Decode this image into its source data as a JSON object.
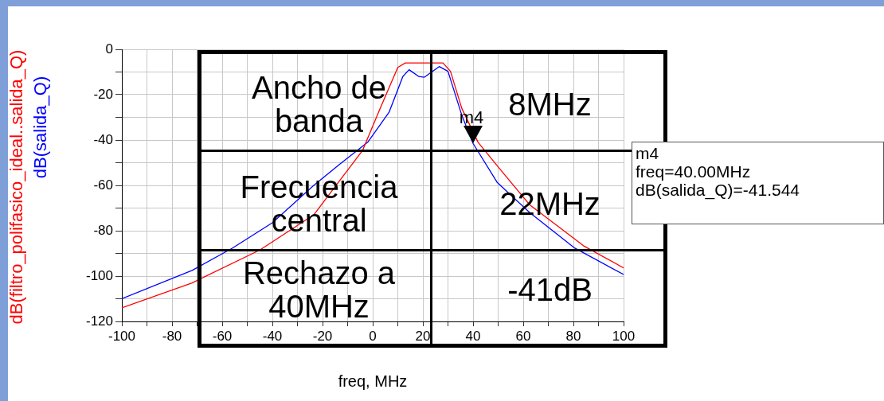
{
  "chart_data": {
    "type": "line",
    "xlabel": "freq, MHz",
    "xlim": [
      -100,
      100
    ],
    "xticks": [
      -100,
      {
        "value": -90,
        "label": null
      },
      -80,
      {
        "value": -70,
        "label": null
      },
      -60,
      {
        "value": -50,
        "label": null
      },
      -40,
      {
        "value": -30,
        "label": null
      },
      -20,
      {
        "value": -10,
        "label": null
      },
      0,
      {
        "value": 10,
        "label": null
      },
      20,
      {
        "value": 30,
        "label": null
      },
      40,
      {
        "value": 50,
        "label": null
      },
      60,
      {
        "value": 70,
        "label": null
      },
      80,
      {
        "value": 90,
        "label": null
      },
      100
    ],
    "ylim": [
      -120,
      0
    ],
    "yticks": [
      -120,
      {
        "value": -110,
        "label": null
      },
      -100,
      {
        "value": -90,
        "label": null
      },
      -80,
      {
        "value": -70,
        "label": null
      },
      -60,
      {
        "value": -50,
        "label": null
      },
      -40,
      {
        "value": -30,
        "label": null
      },
      -20,
      {
        "value": -10,
        "label": null
      },
      0
    ],
    "grid": true,
    "marker": "none",
    "line_style": "solid",
    "legend": "left",
    "series": [
      {
        "name": "dB(filtro_polifasico_ideal..salida_Q)",
        "color": "#ff0000",
        "x": [
          -100,
          -72,
          -45,
          -23.5,
          -4,
          3,
          10,
          13,
          28,
          31,
          35.5,
          42,
          51.6,
          62.6,
          84,
          100
        ],
        "values": [
          -114,
          -103,
          -88.5,
          -73,
          -44.5,
          -26,
          -8,
          -6,
          -6,
          -9.7,
          -26,
          -41,
          -54,
          -68.6,
          -86.6,
          -96.4
        ]
      },
      {
        "name": "dB(salida_Q)",
        "color": "#0000ff",
        "x": [
          -100,
          -72,
          -56,
          -40,
          -23.5,
          -13,
          -2,
          6.5,
          12,
          14.5,
          18.4,
          20.6,
          26.5,
          30,
          35.5,
          40,
          49.7,
          62.6,
          80.6,
          100
        ],
        "values": [
          -110,
          -97.5,
          -87.7,
          -76.5,
          -60,
          -50.5,
          -41,
          -27.8,
          -12,
          -9,
          -12,
          -12.3,
          -7.6,
          -9.7,
          -29,
          -41.5,
          -58.8,
          -72,
          -87.7,
          -99.3
        ]
      }
    ],
    "annotations": [
      "Ancho de banda",
      "8MHz",
      "Frecuencia central",
      "22MHz",
      "Rechazo a 40MHz",
      "-41dB",
      {
        "text": "m4",
        "x": 40,
        "y": -41.544
      },
      "m4\nfreq=40.00MHz\ndB(salida_Q)=-41.544"
    ]
  }
}
